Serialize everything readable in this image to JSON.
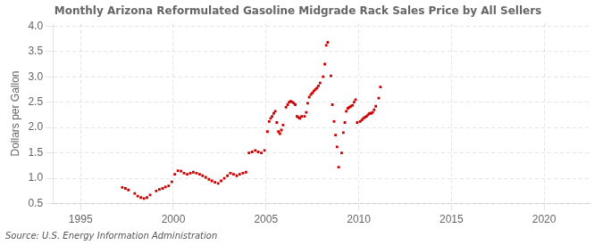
{
  "chart_data": {
    "type": "scatter",
    "title": "Monthly Arizona Reformulated Gasoline Midgrade Rack Sales Price by All Sellers",
    "ylabel": "Dollars per Gallon",
    "annotations": [
      "Source: U.S. Energy Information Administration"
    ],
    "xlim": [
      1993.5,
      2022.5
    ],
    "ylim": [
      0.5,
      4.05
    ],
    "xticks": [
      1995,
      2000,
      2005,
      2010,
      2015,
      2020
    ],
    "yticks": [
      0.5,
      {
        "value": 1.0,
        "label": "1.0"
      },
      1.5,
      {
        "value": 2.0,
        "label": "2.0"
      },
      2.5,
      {
        "value": 3.0,
        "label": "3.0"
      },
      3.5,
      {
        "value": 4.0,
        "label": "4.0"
      }
    ],
    "grid": true,
    "color": "#cc0000",
    "marker": "square",
    "x": [
      1997.25,
      1997.42,
      1997.58,
      1997.92,
      1998.08,
      1998.25,
      1998.42,
      1998.58,
      1998.75,
      1999.08,
      1999.25,
      1999.42,
      1999.58,
      1999.75,
      1999.92,
      2000.08,
      2000.25,
      2000.42,
      2000.58,
      2000.75,
      2000.92,
      2001.08,
      2001.25,
      2001.42,
      2001.58,
      2001.75,
      2001.92,
      2002.08,
      2002.25,
      2002.42,
      2002.58,
      2002.75,
      2002.92,
      2003.08,
      2003.25,
      2003.42,
      2003.58,
      2003.75,
      2003.92,
      2004.08,
      2004.25,
      2004.42,
      2004.58,
      2004.75,
      2004.92,
      2005.08,
      2005.17,
      2005.25,
      2005.33,
      2005.42,
      2005.5,
      2005.58,
      2005.67,
      2005.75,
      2005.83,
      2005.92,
      2006.08,
      2006.17,
      2006.25,
      2006.33,
      2006.42,
      2006.5,
      2006.58,
      2006.67,
      2006.75,
      2006.83,
      2006.92,
      2007.08,
      2007.17,
      2007.25,
      2007.33,
      2007.42,
      2007.5,
      2007.58,
      2007.67,
      2007.75,
      2007.83,
      2007.92,
      2008.08,
      2008.17,
      2008.25,
      2008.33,
      2008.5,
      2008.58,
      2008.67,
      2008.75,
      2008.83,
      2008.92,
      2009.08,
      2009.17,
      2009.25,
      2009.33,
      2009.42,
      2009.5,
      2009.58,
      2009.67,
      2009.75,
      2009.83,
      2009.92,
      2010.08,
      2010.17,
      2010.25,
      2010.33,
      2010.42,
      2010.5,
      2010.58,
      2010.67,
      2010.75,
      2010.83,
      2010.92,
      2011.08,
      2011.17
    ],
    "values": [
      0.82,
      0.8,
      0.77,
      0.7,
      0.65,
      0.62,
      0.6,
      0.62,
      0.67,
      0.75,
      0.78,
      0.8,
      0.83,
      0.85,
      0.93,
      1.08,
      1.15,
      1.14,
      1.1,
      1.08,
      1.1,
      1.12,
      1.1,
      1.08,
      1.05,
      1.02,
      0.98,
      0.95,
      0.92,
      0.9,
      0.95,
      1.0,
      1.05,
      1.1,
      1.08,
      1.05,
      1.08,
      1.1,
      1.12,
      1.5,
      1.52,
      1.55,
      1.52,
      1.5,
      1.55,
      1.92,
      2.12,
      2.18,
      2.22,
      2.28,
      2.32,
      2.1,
      1.92,
      1.88,
      1.95,
      2.05,
      2.4,
      2.45,
      2.5,
      2.52,
      2.5,
      2.48,
      2.45,
      2.22,
      2.2,
      2.18,
      2.22,
      2.22,
      2.3,
      2.48,
      2.6,
      2.65,
      2.68,
      2.72,
      2.75,
      2.78,
      2.82,
      2.88,
      3.0,
      3.25,
      3.62,
      3.68,
      3.02,
      2.45,
      2.12,
      1.85,
      1.62,
      1.22,
      1.5,
      1.9,
      2.1,
      2.32,
      2.38,
      2.4,
      2.42,
      2.44,
      2.5,
      2.55,
      2.1,
      2.12,
      2.15,
      2.18,
      2.2,
      2.22,
      2.25,
      2.28,
      2.28,
      2.3,
      2.35,
      2.42,
      2.58,
      2.8
    ]
  }
}
